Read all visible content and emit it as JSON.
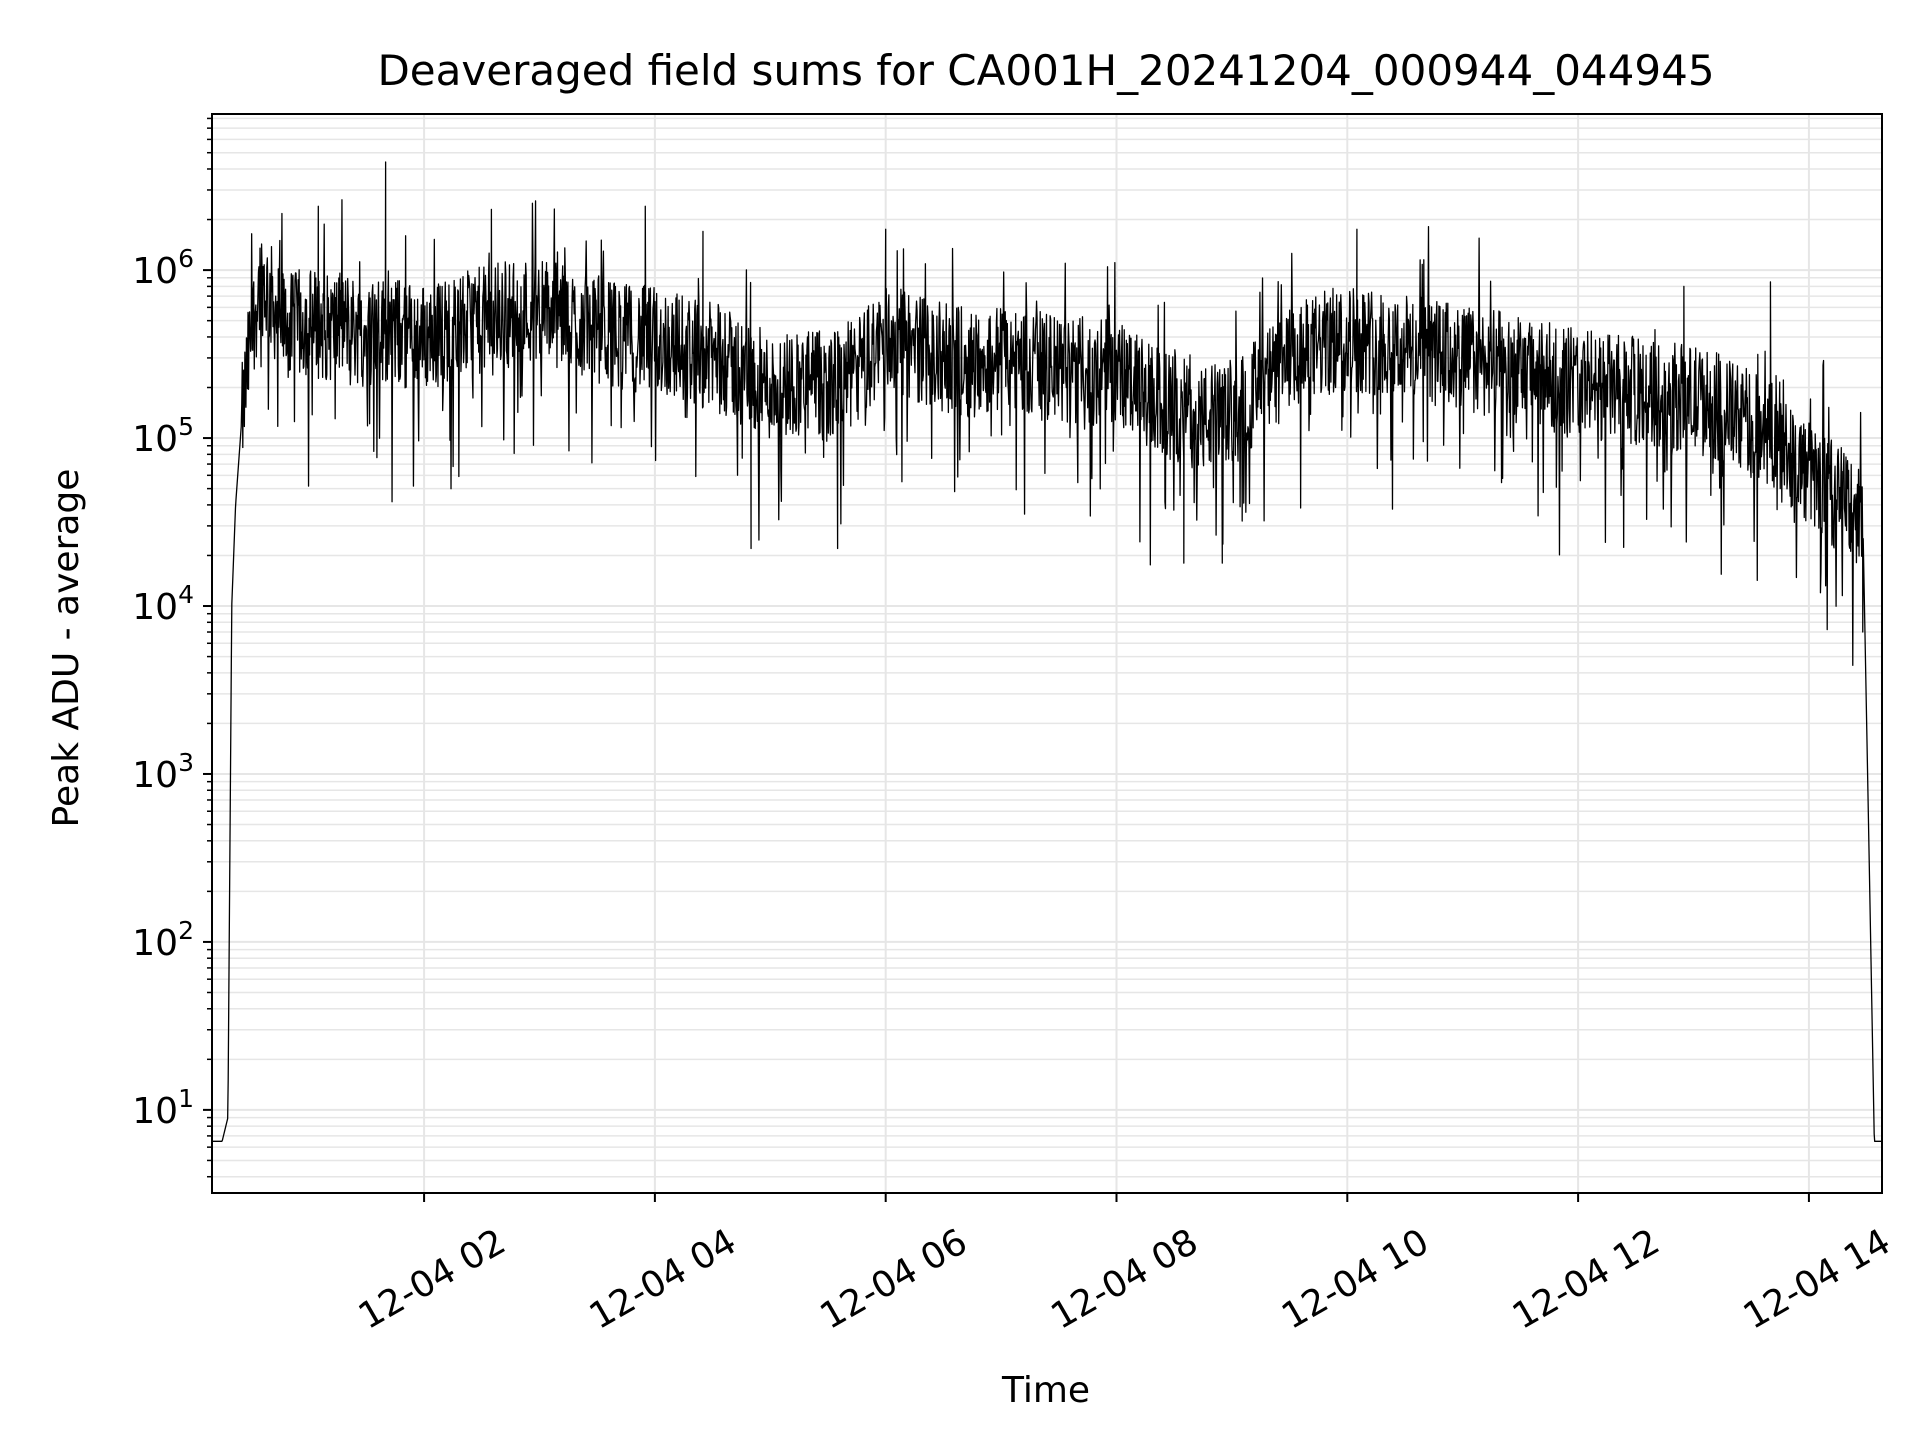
{
  "chart_data": {
    "type": "line",
    "title": "Deaveraged field sums for CA001H_20241204_000944_044945",
    "xlabel": "Time",
    "ylabel": "Peak ADU - average",
    "y_scale": "log",
    "ylim": [
      3.2,
      8500000
    ],
    "xlim": [
      "2024-12-04 00:09:44",
      "2024-12-04 14:38:00"
    ],
    "x_ticks": [
      "2024-12-04 02:00",
      "2024-12-04 04:00",
      "2024-12-04 06:00",
      "2024-12-04 08:00",
      "2024-12-04 10:00",
      "2024-12-04 12:00",
      "2024-12-04 14:00"
    ],
    "x_tick_labels": [
      "12-04 02",
      "12-04 04",
      "12-04 06",
      "12-04 08",
      "12-04 10",
      "12-04 12",
      "12-04 14"
    ],
    "y_ticks": [
      10,
      100,
      1000,
      10000,
      100000,
      1000000
    ],
    "y_tick_labels": [
      {
        "base": "10",
        "exp": "1"
      },
      {
        "base": "10",
        "exp": "2"
      },
      {
        "base": "10",
        "exp": "3"
      },
      {
        "base": "10",
        "exp": "4"
      },
      {
        "base": "10",
        "exp": "5"
      },
      {
        "base": "10",
        "exp": "6"
      }
    ],
    "grid": "major and minor",
    "line_color": "#000000",
    "grid_color": "#e6e6e6",
    "series": [
      {
        "x": [
          "2024-12-04 00:09:44",
          "2024-12-04 00:15",
          "2024-12-04 00:18",
          "2024-12-04 00:20",
          "2024-12-04 00:22",
          "2024-12-04 00:25",
          "2024-12-04 00:30",
          "2024-12-04 00:35",
          "2024-12-04 00:40",
          "2024-12-04 00:45",
          "2024-12-04 00:50",
          "2024-12-04 00:55",
          "2024-12-04 01:00",
          "2024-12-04 01:10",
          "2024-12-04 01:20",
          "2024-12-04 01:30",
          "2024-12-04 01:40",
          "2024-12-04 01:50",
          "2024-12-04 02:00",
          "2024-12-04 02:15",
          "2024-12-04 02:30",
          "2024-12-04 02:45",
          "2024-12-04 03:00",
          "2024-12-04 03:15",
          "2024-12-04 03:30",
          "2024-12-04 03:45",
          "2024-12-04 04:00",
          "2024-12-04 04:15",
          "2024-12-04 04:30",
          "2024-12-04 04:45",
          "2024-12-04 05:00",
          "2024-12-04 05:15",
          "2024-12-04 05:30",
          "2024-12-04 05:45",
          "2024-12-04 06:00",
          "2024-12-04 06:15",
          "2024-12-04 06:30",
          "2024-12-04 06:45",
          "2024-12-04 07:00",
          "2024-12-04 07:15",
          "2024-12-04 07:30",
          "2024-12-04 07:45",
          "2024-12-04 08:00",
          "2024-12-04 08:15",
          "2024-12-04 08:30",
          "2024-12-04 08:45",
          "2024-12-04 09:00",
          "2024-12-04 09:15",
          "2024-12-04 09:30",
          "2024-12-04 09:45",
          "2024-12-04 10:00",
          "2024-12-04 10:15",
          "2024-12-04 10:30",
          "2024-12-04 10:45",
          "2024-12-04 11:00",
          "2024-12-04 11:15",
          "2024-12-04 11:30",
          "2024-12-04 11:45",
          "2024-12-04 12:00",
          "2024-12-04 12:15",
          "2024-12-04 12:30",
          "2024-12-04 12:45",
          "2024-12-04 13:00",
          "2024-12-04 13:15",
          "2024-12-04 13:30",
          "2024-12-04 13:45",
          "2024-12-04 14:00",
          "2024-12-04 14:10",
          "2024-12-04 14:20",
          "2024-12-04 14:28",
          "2024-12-04 14:31",
          "2024-12-04 14:34",
          "2024-12-04 14:38"
        ],
        "y": [
          6.5,
          6.5,
          9,
          10000,
          40000,
          120000,
          400000,
          900000,
          700000,
          500000,
          450000,
          480000,
          500000,
          450000,
          480000,
          400000,
          450000,
          420000,
          400000,
          450000,
          500000,
          550000,
          600000,
          500000,
          450000,
          400000,
          380000,
          350000,
          300000,
          250000,
          200000,
          220000,
          200000,
          250000,
          400000,
          350000,
          300000,
          280000,
          300000,
          280000,
          250000,
          250000,
          250000,
          180000,
          150000,
          130000,
          140000,
          200000,
          280000,
          350000,
          400000,
          380000,
          350000,
          320000,
          300000,
          280000,
          250000,
          230000,
          220000,
          200000,
          190000,
          180000,
          170000,
          150000,
          120000,
          100000,
          60000,
          50000,
          40000,
          35000,
          500,
          6.5,
          6.5
        ],
        "excursions": [
          {
            "x": "2024-12-04 00:45",
            "y": 1500000
          },
          {
            "x": "2024-12-04 01:05",
            "y": 2400000
          },
          {
            "x": "2024-12-04 01:40",
            "y": 4400000
          },
          {
            "x": "2024-12-04 02:35",
            "y": 2300000
          },
          {
            "x": "2024-12-04 03:55",
            "y": 2400000
          },
          {
            "x": "2024-12-04 04:25",
            "y": 1700000
          },
          {
            "x": "2024-12-04 06:00",
            "y": 1750000
          },
          {
            "x": "2024-12-04 10:05",
            "y": 1750000
          },
          {
            "x": "2024-12-04 12:55",
            "y": 800000
          },
          {
            "x": "2024-12-04 13:40",
            "y": 850000
          },
          {
            "x": "2024-12-04 04:50",
            "y": 22000
          },
          {
            "x": "2024-12-04 05:35",
            "y": 22000
          },
          {
            "x": "2024-12-04 08:35",
            "y": 18000
          },
          {
            "x": "2024-12-04 08:55",
            "y": 18000
          },
          {
            "x": "2024-12-04 14:06",
            "y": 12000
          },
          {
            "x": "2024-12-04 14:28",
            "y": 7000
          }
        ]
      }
    ]
  }
}
